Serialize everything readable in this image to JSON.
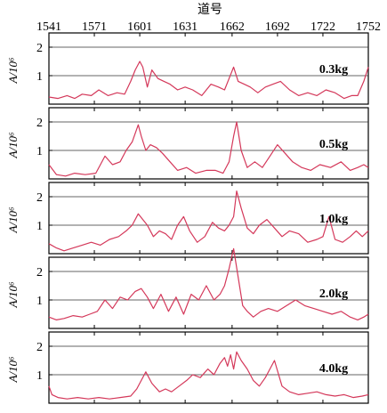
{
  "chart_data": {
    "type": "line",
    "title": "道号",
    "x_ticks": [
      "1541",
      "1571",
      "1601",
      "1631",
      "1662",
      "1692",
      "1722",
      "1752"
    ],
    "xlim": [
      1541,
      1752
    ],
    "ylabel": "A/10⁶",
    "y_ticks": [
      "1",
      "2"
    ],
    "ylim": [
      0,
      2.5
    ],
    "line_color": "#d4385a",
    "panels": [
      {
        "label": "0.3kg",
        "x": [
          1541,
          1547,
          1553,
          1558,
          1563,
          1569,
          1574,
          1580,
          1586,
          1591,
          1595,
          1598,
          1601,
          1603,
          1606,
          1609,
          1613,
          1617,
          1621,
          1626,
          1631,
          1636,
          1642,
          1648,
          1653,
          1657,
          1660,
          1663,
          1666,
          1670,
          1674,
          1679,
          1684,
          1689,
          1694,
          1700,
          1706,
          1712,
          1718,
          1724,
          1730,
          1736,
          1741,
          1745,
          1749,
          1752
        ],
        "y": [
          0.25,
          0.2,
          0.3,
          0.2,
          0.35,
          0.3,
          0.5,
          0.3,
          0.4,
          0.35,
          0.8,
          1.2,
          1.5,
          1.3,
          0.6,
          1.2,
          0.9,
          0.8,
          0.7,
          0.5,
          0.6,
          0.5,
          0.3,
          0.7,
          0.6,
          0.5,
          0.9,
          1.3,
          0.8,
          0.7,
          0.6,
          0.4,
          0.6,
          0.7,
          0.8,
          0.5,
          0.3,
          0.4,
          0.3,
          0.5,
          0.4,
          0.2,
          0.3,
          0.3,
          0.8,
          1.3
        ]
      },
      {
        "label": "0.5kg",
        "x": [
          1541,
          1546,
          1552,
          1558,
          1565,
          1572,
          1578,
          1583,
          1588,
          1592,
          1596,
          1600,
          1602,
          1605,
          1608,
          1612,
          1616,
          1621,
          1626,
          1632,
          1638,
          1645,
          1651,
          1656,
          1660,
          1663,
          1665,
          1668,
          1672,
          1677,
          1682,
          1687,
          1692,
          1697,
          1702,
          1708,
          1714,
          1720,
          1727,
          1734,
          1740,
          1745,
          1749,
          1752
        ],
        "y": [
          0.5,
          0.15,
          0.1,
          0.2,
          0.15,
          0.2,
          0.8,
          0.5,
          0.6,
          1.0,
          1.3,
          1.9,
          1.5,
          1.0,
          1.2,
          1.1,
          0.9,
          0.6,
          0.3,
          0.4,
          0.2,
          0.3,
          0.3,
          0.2,
          0.6,
          1.5,
          2.0,
          1.0,
          0.4,
          0.6,
          0.4,
          0.8,
          1.2,
          0.9,
          0.6,
          0.4,
          0.3,
          0.5,
          0.4,
          0.6,
          0.3,
          0.4,
          0.5,
          0.4
        ]
      },
      {
        "label": "1.0kg",
        "x": [
          1541,
          1546,
          1551,
          1557,
          1563,
          1569,
          1575,
          1581,
          1587,
          1592,
          1596,
          1600,
          1603,
          1606,
          1610,
          1614,
          1618,
          1622,
          1626,
          1630,
          1634,
          1639,
          1644,
          1649,
          1653,
          1657,
          1660,
          1663,
          1665,
          1668,
          1672,
          1676,
          1680,
          1685,
          1690,
          1695,
          1700,
          1706,
          1712,
          1718,
          1722,
          1726,
          1730,
          1735,
          1740,
          1744,
          1748,
          1752
        ],
        "y": [
          0.35,
          0.2,
          0.1,
          0.2,
          0.3,
          0.4,
          0.3,
          0.5,
          0.6,
          0.8,
          1.0,
          1.4,
          1.2,
          1.0,
          0.6,
          0.8,
          0.7,
          0.5,
          1.0,
          1.3,
          0.8,
          0.4,
          0.6,
          1.1,
          0.9,
          0.8,
          1.0,
          1.3,
          2.2,
          1.6,
          0.9,
          0.7,
          1.0,
          1.2,
          0.9,
          0.6,
          0.8,
          0.7,
          0.4,
          0.5,
          0.6,
          1.3,
          0.5,
          0.4,
          0.6,
          0.8,
          0.6,
          0.8
        ]
      },
      {
        "label": "2.0kg",
        "x": [
          1541,
          1546,
          1551,
          1557,
          1563,
          1568,
          1573,
          1578,
          1583,
          1588,
          1593,
          1598,
          1602,
          1606,
          1610,
          1615,
          1620,
          1625,
          1630,
          1635,
          1640,
          1645,
          1650,
          1654,
          1657,
          1660,
          1663,
          1666,
          1669,
          1672,
          1676,
          1681,
          1686,
          1692,
          1698,
          1704,
          1710,
          1716,
          1722,
          1728,
          1734,
          1740,
          1745,
          1749,
          1752
        ],
        "y": [
          0.4,
          0.3,
          0.35,
          0.45,
          0.4,
          0.5,
          0.6,
          1.0,
          0.7,
          1.1,
          1.0,
          1.3,
          1.4,
          1.1,
          0.7,
          1.2,
          0.6,
          1.1,
          0.5,
          1.2,
          1.0,
          1.5,
          1.0,
          1.2,
          1.5,
          2.1,
          2.8,
          1.8,
          0.8,
          0.6,
          0.4,
          0.6,
          0.7,
          0.6,
          0.8,
          1.0,
          0.8,
          0.7,
          0.6,
          0.5,
          0.6,
          0.4,
          0.3,
          0.4,
          0.5
        ]
      },
      {
        "label": "4.0kg",
        "x": [
          1541,
          1543,
          1547,
          1553,
          1560,
          1567,
          1574,
          1581,
          1588,
          1595,
          1599,
          1602,
          1605,
          1609,
          1614,
          1618,
          1622,
          1627,
          1632,
          1636,
          1641,
          1646,
          1650,
          1654,
          1657,
          1659,
          1661,
          1663,
          1665,
          1668,
          1672,
          1676,
          1680,
          1684,
          1687,
          1690,
          1695,
          1700,
          1706,
          1712,
          1718,
          1724,
          1730,
          1736,
          1742,
          1748,
          1752
        ],
        "y": [
          0.6,
          0.3,
          0.2,
          0.15,
          0.2,
          0.15,
          0.2,
          0.15,
          0.2,
          0.25,
          0.5,
          0.8,
          1.1,
          0.7,
          0.4,
          0.5,
          0.4,
          0.6,
          0.8,
          1.0,
          0.9,
          1.2,
          1.0,
          1.4,
          1.6,
          1.3,
          1.7,
          1.2,
          1.8,
          1.5,
          1.2,
          0.8,
          0.6,
          0.9,
          1.2,
          1.5,
          0.6,
          0.4,
          0.3,
          0.35,
          0.4,
          0.3,
          0.25,
          0.3,
          0.2,
          0.25,
          0.3
        ]
      }
    ]
  }
}
